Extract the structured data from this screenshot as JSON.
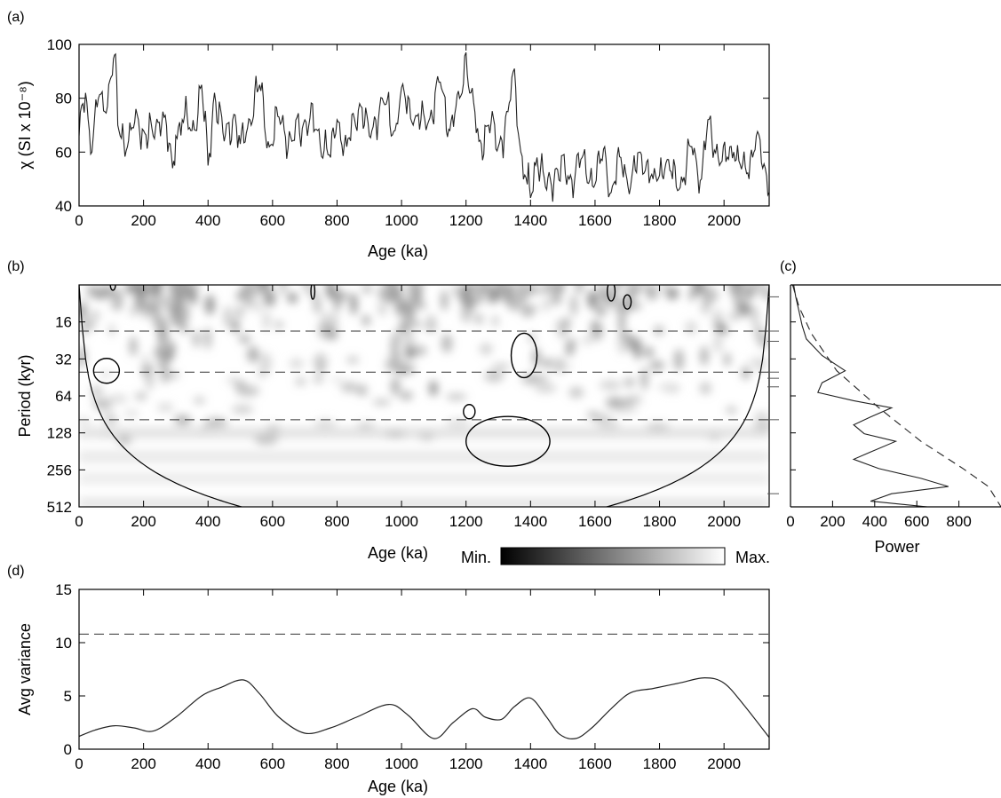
{
  "chart_data": [
    {
      "panel": "(a)",
      "type": "line",
      "xlabel": "Age (ka)",
      "ylabel": "χ (SI x 10⁻⁸)",
      "xlim": [
        0,
        2140
      ],
      "ylim": [
        40,
        100
      ],
      "xticks": [
        "0",
        "200",
        "400",
        "600",
        "800",
        "1000",
        "1200",
        "1400",
        "1600",
        "1800",
        "2000"
      ],
      "yticks": [
        "40",
        "60",
        "80",
        "100"
      ],
      "series": [
        {
          "x": [
            0,
            20,
            40,
            60,
            80,
            100,
            110,
            120,
            150,
            180,
            200,
            230,
            260,
            290,
            300,
            320,
            350,
            380,
            400,
            420,
            450,
            480,
            500,
            530,
            560,
            590,
            620,
            660,
            700,
            740,
            780,
            800,
            830,
            870,
            900,
            940,
            980,
            1000,
            1040,
            1080,
            1120,
            1150,
            1180,
            1200,
            1215,
            1240,
            1270,
            1300,
            1330,
            1350,
            1370,
            1390,
            1400,
            1420,
            1450,
            1480,
            1520,
            1560,
            1600,
            1630,
            1650,
            1680,
            1710,
            1740,
            1780,
            1820,
            1860,
            1900,
            1930,
            1950,
            1990,
            2030,
            2070,
            2100,
            2120,
            2140
          ],
          "values": [
            66,
            82,
            60,
            80,
            75,
            88,
            96,
            70,
            62,
            74,
            68,
            66,
            75,
            54,
            66,
            72,
            68,
            85,
            55,
            82,
            64,
            74,
            63,
            72,
            85,
            62,
            73,
            64,
            72,
            68,
            58,
            72,
            62,
            78,
            66,
            80,
            68,
            84,
            72,
            70,
            86,
            68,
            80,
            97,
            82,
            64,
            70,
            62,
            75,
            91,
            60,
            48,
            43,
            58,
            46,
            54,
            50,
            58,
            48,
            62,
            45,
            58,
            47,
            60,
            50,
            56,
            46,
            62,
            50,
            72,
            56,
            60,
            52,
            66,
            54,
            45
          ]
        }
      ]
    },
    {
      "panel": "(b)",
      "type": "heatmap",
      "xlabel": "Age (ka)",
      "ylabel": "Period (kyr)",
      "xlim": [
        0,
        2140
      ],
      "yscale": "log2",
      "ylim": [
        8,
        512
      ],
      "xticks": [
        "0",
        "200",
        "400",
        "600",
        "800",
        "1000",
        "1200",
        "1400",
        "1600",
        "1800",
        "2000"
      ],
      "yticks": [
        "16",
        "32",
        "64",
        "128",
        "256",
        "512"
      ],
      "dashed_periods": [
        19,
        41,
        100
      ],
      "colorbar": {
        "min_label": "Min.",
        "max_label": "Max."
      }
    },
    {
      "panel": "(c)",
      "type": "line",
      "xlabel": "Power",
      "xlim": [
        0,
        1000
      ],
      "xticks": [
        "0",
        "200",
        "400",
        "600",
        "800"
      ],
      "series": [
        {
          "style": "solid",
          "period": [
            8,
            10,
            13,
            17,
            22,
            30,
            40,
            50,
            60,
            70,
            80,
            95,
            110,
            130,
            150,
            180,
            210,
            250,
            300,
            350,
            400,
            460,
            512
          ],
          "power": [
            15,
            25,
            40,
            55,
            75,
            150,
            260,
            150,
            130,
            300,
            480,
            380,
            300,
            350,
            500,
            390,
            300,
            420,
            620,
            750,
            480,
            380,
            650
          ]
        },
        {
          "style": "dashed",
          "period": [
            8,
            12,
            20,
            40,
            80,
            150,
            250,
            350,
            512
          ],
          "power": [
            10,
            40,
            100,
            220,
            420,
            620,
            820,
            940,
            1000
          ]
        }
      ]
    },
    {
      "panel": "(d)",
      "type": "line",
      "xlabel": "Age (ka)",
      "ylabel": "Avg variance",
      "xlim": [
        0,
        2140
      ],
      "ylim": [
        0,
        15
      ],
      "xticks": [
        "0",
        "200",
        "400",
        "600",
        "800",
        "1000",
        "1200",
        "1400",
        "1600",
        "1800",
        "2000"
      ],
      "yticks": [
        "0",
        "5",
        "10",
        "15"
      ],
      "threshold": 10.8,
      "series": [
        {
          "x": [
            0,
            50,
            110,
            170,
            230,
            300,
            380,
            440,
            510,
            560,
            620,
            700,
            780,
            860,
            960,
            1020,
            1100,
            1160,
            1220,
            1260,
            1310,
            1350,
            1400,
            1450,
            1490,
            1540,
            1590,
            1650,
            1710,
            1780,
            1860,
            1940,
            2000,
            2060,
            2140
          ],
          "values": [
            1.2,
            1.8,
            2.2,
            2.0,
            1.7,
            3.0,
            5.0,
            5.8,
            6.5,
            5.2,
            3.0,
            1.5,
            2.0,
            3.0,
            4.2,
            3.2,
            1.0,
            2.5,
            3.8,
            3.0,
            2.8,
            4.0,
            4.8,
            3.0,
            1.4,
            1.0,
            2.0,
            3.8,
            5.3,
            5.7,
            6.2,
            6.7,
            6.2,
            4.2,
            1.1
          ]
        }
      ]
    }
  ],
  "labels": {
    "a": "(a)",
    "b": "(b)",
    "c": "(c)",
    "d": "(d)",
    "a_xlabel": "Age (ka)",
    "a_ylabel": "χ (SI x 10⁻⁸)",
    "b_xlabel": "Age (ka)",
    "b_ylabel": "Period (kyr)",
    "c_xlabel": "Power",
    "d_xlabel": "Age (ka)",
    "d_ylabel": "Avg variance",
    "cb_min": "Min.",
    "cb_max": "Max."
  }
}
